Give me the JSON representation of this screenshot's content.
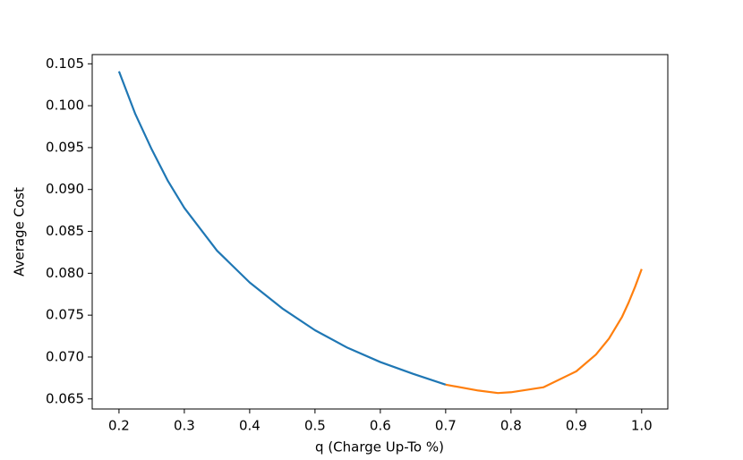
{
  "chart_data": {
    "type": "line",
    "xlabel": "q (Charge Up-To %)",
    "ylabel": "Average Cost",
    "series": [
      {
        "color": "#1f77b4",
        "x": [
          0.2,
          0.225,
          0.25,
          0.275,
          0.3,
          0.35,
          0.4,
          0.45,
          0.5,
          0.55,
          0.6,
          0.65,
          0.7
        ],
        "values": [
          0.1041,
          0.099,
          0.0948,
          0.091,
          0.0878,
          0.0827,
          0.0789,
          0.0758,
          0.0732,
          0.0711,
          0.0694,
          0.068,
          0.0667
        ]
      },
      {
        "color": "#ff7f0e",
        "x": [
          0.7,
          0.75,
          0.78,
          0.8,
          0.85,
          0.9,
          0.93,
          0.95,
          0.97,
          0.98,
          0.99,
          1.0
        ],
        "values": [
          0.0667,
          0.066,
          0.0657,
          0.0658,
          0.0664,
          0.0683,
          0.0703,
          0.0722,
          0.0748,
          0.0765,
          0.0784,
          0.0805
        ]
      }
    ],
    "xlim": [
      0.159,
      1.04
    ],
    "ylim": [
      0.0638,
      0.1061
    ],
    "xticks": [
      0.2,
      0.3,
      0.4,
      0.5,
      0.6,
      0.7,
      0.8,
      0.9,
      {
        "value": 1.0,
        "label": "1.0"
      }
    ],
    "yticks": [
      0.065,
      {
        "value": 0.07,
        "label": "0.070"
      },
      0.075,
      {
        "value": 0.08,
        "label": "0.080"
      },
      0.085,
      {
        "value": 0.09,
        "label": "0.090"
      },
      0.095,
      {
        "value": 0.1,
        "label": "0.100"
      },
      0.105
    ],
    "grid": false
  }
}
